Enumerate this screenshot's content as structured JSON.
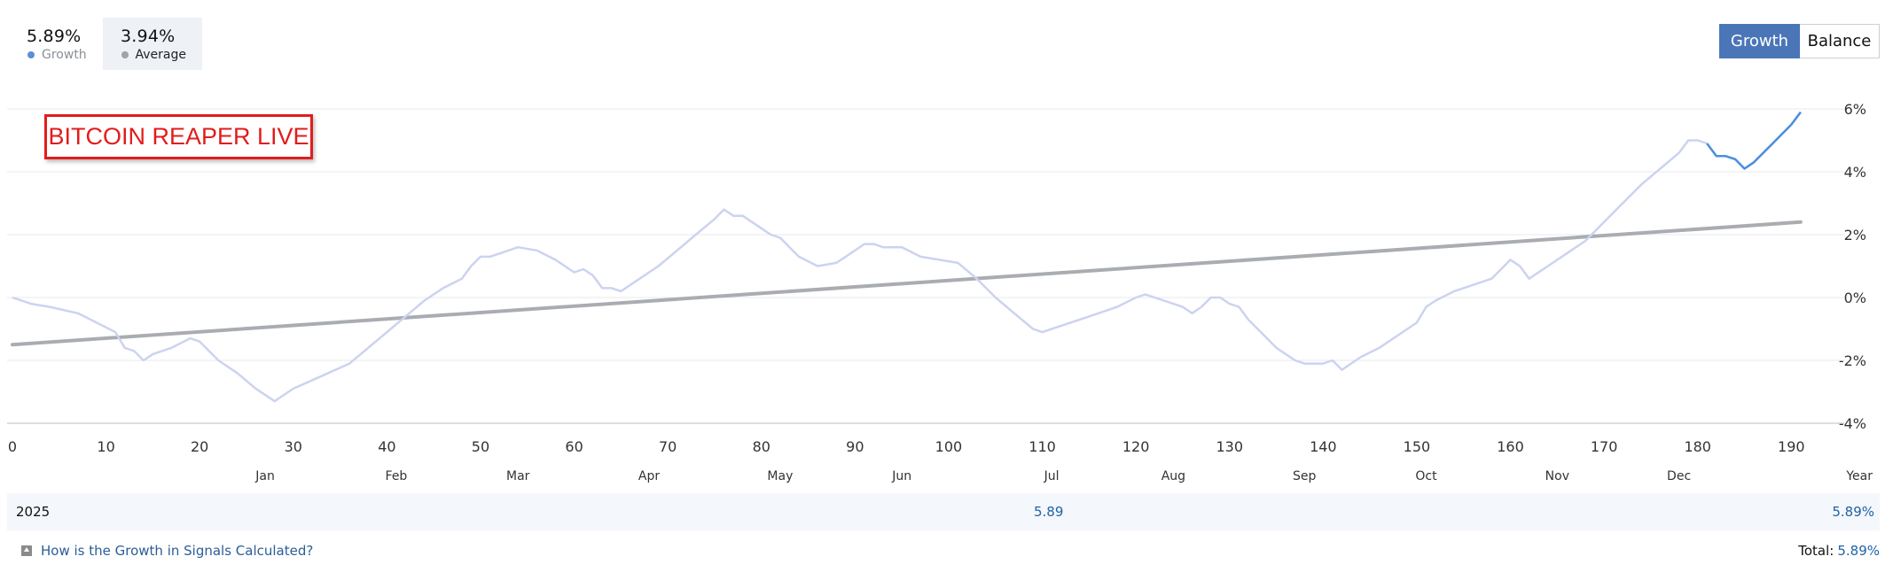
{
  "stats": {
    "growth": {
      "value": "5.89%",
      "label": "Growth",
      "color": "#5b8fd8"
    },
    "average": {
      "value": "3.94%",
      "label": "Average",
      "color": "#a0a3a8"
    }
  },
  "toggle": {
    "growth_label": "Growth",
    "balance_label": "Balance",
    "active": "Growth",
    "active_color": "#4a76b8"
  },
  "watermark": "BITCOIN REAPER LIVE",
  "chart_data": {
    "type": "line",
    "xlim": [
      0,
      193
    ],
    "ylim": [
      -4,
      6
    ],
    "x_ticks": [
      0,
      10,
      20,
      30,
      40,
      50,
      60,
      70,
      80,
      90,
      100,
      110,
      120,
      130,
      140,
      150,
      160,
      170,
      180,
      190
    ],
    "y_ticks": [
      "6%",
      "4%",
      "2%",
      "0%",
      "-2%",
      "-4%"
    ],
    "y_tick_values": [
      6,
      4,
      2,
      0,
      -2,
      -4
    ],
    "months": [
      {
        "label": "Jan",
        "x": 27
      },
      {
        "label": "Feb",
        "x": 41
      },
      {
        "label": "Mar",
        "x": 54
      },
      {
        "label": "Apr",
        "x": 68
      },
      {
        "label": "May",
        "x": 82
      },
      {
        "label": "Jun",
        "x": 95
      },
      {
        "label": "Jul",
        "x": 111
      },
      {
        "label": "Aug",
        "x": 124
      },
      {
        "label": "Sep",
        "x": 138
      },
      {
        "label": "Oct",
        "x": 151
      },
      {
        "label": "Nov",
        "x": 165
      },
      {
        "label": "Dec",
        "x": 178
      }
    ],
    "year_label": "Year",
    "grid": true,
    "series": [
      {
        "name": "Growth",
        "color": "#ccd3f0",
        "points": [
          [
            0,
            0.0
          ],
          [
            2,
            -0.2
          ],
          [
            4,
            -0.3
          ],
          [
            7,
            -0.5
          ],
          [
            9,
            -0.8
          ],
          [
            11,
            -1.1
          ],
          [
            12,
            -1.6
          ],
          [
            13,
            -1.7
          ],
          [
            14,
            -2.0
          ],
          [
            15,
            -1.8
          ],
          [
            17,
            -1.6
          ],
          [
            19,
            -1.3
          ],
          [
            20,
            -1.4
          ],
          [
            22,
            -2.0
          ],
          [
            24,
            -2.4
          ],
          [
            26,
            -2.9
          ],
          [
            28,
            -3.3
          ],
          [
            30,
            -2.9
          ],
          [
            33,
            -2.5
          ],
          [
            36,
            -2.1
          ],
          [
            38,
            -1.6
          ],
          [
            40,
            -1.1
          ],
          [
            42,
            -0.6
          ],
          [
            44,
            -0.1
          ],
          [
            46,
            0.3
          ],
          [
            48,
            0.6
          ],
          [
            49,
            1.0
          ],
          [
            50,
            1.3
          ],
          [
            51,
            1.3
          ],
          [
            53,
            1.5
          ],
          [
            54,
            1.6
          ],
          [
            56,
            1.5
          ],
          [
            58,
            1.2
          ],
          [
            60,
            0.8
          ],
          [
            61,
            0.9
          ],
          [
            62,
            0.7
          ],
          [
            63,
            0.3
          ],
          [
            64,
            0.3
          ],
          [
            65,
            0.2
          ],
          [
            67,
            0.6
          ],
          [
            69,
            1.0
          ],
          [
            71,
            1.5
          ],
          [
            73,
            2.0
          ],
          [
            75,
            2.5
          ],
          [
            76,
            2.8
          ],
          [
            77,
            2.6
          ],
          [
            78,
            2.6
          ],
          [
            79,
            2.4
          ],
          [
            80,
            2.2
          ],
          [
            81,
            2.0
          ],
          [
            82,
            1.9
          ],
          [
            83,
            1.6
          ],
          [
            84,
            1.3
          ],
          [
            86,
            1.0
          ],
          [
            88,
            1.1
          ],
          [
            89,
            1.3
          ],
          [
            91,
            1.7
          ],
          [
            92,
            1.7
          ],
          [
            93,
            1.6
          ],
          [
            94,
            1.6
          ],
          [
            95,
            1.6
          ],
          [
            97,
            1.3
          ],
          [
            99,
            1.2
          ],
          [
            101,
            1.1
          ],
          [
            103,
            0.6
          ],
          [
            105,
            0.0
          ],
          [
            107,
            -0.5
          ],
          [
            109,
            -1.0
          ],
          [
            110,
            -1.1
          ],
          [
            112,
            -0.9
          ],
          [
            114,
            -0.7
          ],
          [
            116,
            -0.5
          ],
          [
            118,
            -0.3
          ],
          [
            120,
            0.0
          ],
          [
            121,
            0.1
          ],
          [
            122,
            0.0
          ],
          [
            123,
            -0.1
          ],
          [
            124,
            -0.2
          ],
          [
            125,
            -0.3
          ],
          [
            126,
            -0.5
          ],
          [
            127,
            -0.3
          ],
          [
            128,
            0.0
          ],
          [
            129,
            0.0
          ],
          [
            130,
            -0.2
          ],
          [
            131,
            -0.3
          ],
          [
            132,
            -0.7
          ],
          [
            133,
            -1.0
          ],
          [
            134,
            -1.3
          ],
          [
            135,
            -1.6
          ],
          [
            136,
            -1.8
          ],
          [
            137,
            -2.0
          ],
          [
            138,
            -2.1
          ],
          [
            140,
            -2.1
          ],
          [
            141,
            -2.0
          ],
          [
            142,
            -2.3
          ],
          [
            144,
            -1.9
          ],
          [
            146,
            -1.6
          ],
          [
            148,
            -1.2
          ],
          [
            150,
            -0.8
          ],
          [
            151,
            -0.3
          ],
          [
            152,
            -0.1
          ],
          [
            154,
            0.2
          ],
          [
            156,
            0.4
          ],
          [
            158,
            0.6
          ],
          [
            159,
            0.9
          ],
          [
            160,
            1.2
          ],
          [
            161,
            1.0
          ],
          [
            162,
            0.6
          ],
          [
            164,
            1.0
          ],
          [
            166,
            1.4
          ],
          [
            168,
            1.8
          ],
          [
            170,
            2.4
          ],
          [
            172,
            3.0
          ],
          [
            174,
            3.6
          ],
          [
            176,
            4.1
          ],
          [
            178,
            4.6
          ],
          [
            179,
            5.0
          ],
          [
            180,
            5.0
          ],
          [
            181,
            4.9
          ],
          [
            181.5,
            4.7
          ],
          [
            182,
            4.5
          ],
          [
            183,
            4.5
          ],
          [
            184,
            4.4
          ],
          [
            185,
            4.1
          ],
          [
            186,
            4.3
          ],
          [
            187,
            4.6
          ],
          [
            188,
            4.9
          ],
          [
            189,
            5.2
          ],
          [
            190,
            5.5
          ],
          [
            191,
            5.9
          ]
        ],
        "highlight_from_x": 181,
        "highlight_color": "#4a8fe0"
      },
      {
        "name": "Average",
        "color": "#a9acb0",
        "points": [
          [
            0,
            -1.5
          ],
          [
            191,
            2.4
          ]
        ]
      }
    ]
  },
  "table": {
    "year": "2025",
    "month_value": "5.89",
    "total": "5.89%"
  },
  "footer": {
    "help_text": "How is the Growth in Signals Calculated?",
    "total_label": "Total:",
    "total_value": "5.89%"
  }
}
